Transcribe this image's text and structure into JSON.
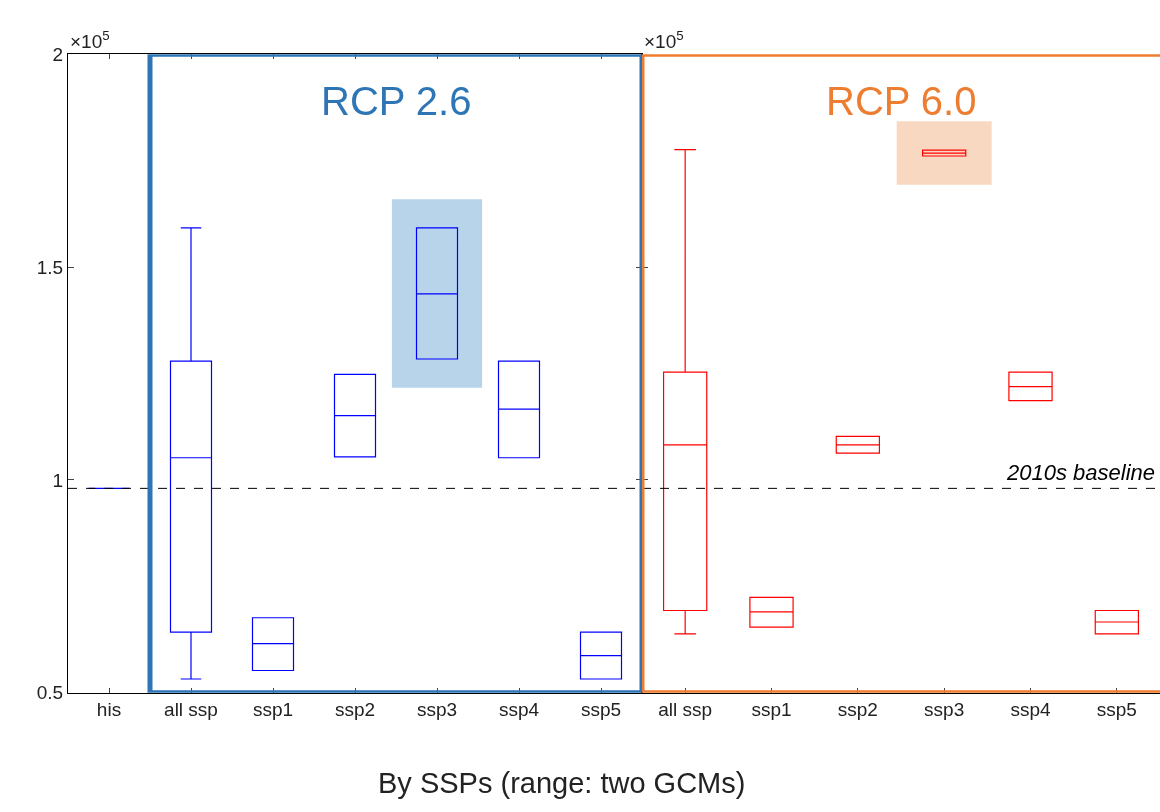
{
  "chart_data": [
    {
      "type": "box",
      "xlabel": "By SSPs (range: two GCMs)",
      "categories": [
        "his",
        "all ssp",
        "ssp1",
        "ssp2",
        "ssp3",
        "ssp4",
        "ssp5"
      ],
      "ylim": [
        0.5,
        2
      ],
      "yticks": [
        0.5,
        1,
        1.5,
        2
      ],
      "grid": false,
      "series": [
        {
          "color": "#0000ff",
          "boxes": [
            {
              "low": 0.98,
              "q1": 0.98,
              "median": 0.98,
              "q3": 0.98,
              "high": 0.98
            },
            {
              "low": 0.532,
              "q1": 0.642,
              "median": 1.052,
              "q3": 1.279,
              "high": 1.592
            },
            {
              "low": 0.552,
              "q1": 0.552,
              "median": 0.615,
              "q3": 0.676,
              "high": 0.676
            },
            {
              "low": 1.054,
              "q1": 1.054,
              "median": 1.151,
              "q3": 1.248,
              "high": 1.248
            },
            {
              "low": 1.284,
              "q1": 1.284,
              "median": 1.437,
              "q3": 1.592,
              "high": 1.592
            },
            {
              "low": 1.052,
              "q1": 1.052,
              "median": 1.166,
              "q3": 1.279,
              "high": 1.279
            },
            {
              "low": 0.532,
              "q1": 0.532,
              "median": 0.587,
              "q3": 0.642,
              "high": 0.642
            }
          ]
        }
      ],
      "ref_lines": [
        {
          "axis": "y",
          "value": 0.98,
          "color": "#000000",
          "line_style": "dashed"
        }
      ],
      "bands": [
        {
          "axis": "x",
          "from": "ssp3",
          "to": "ssp3",
          "color": "#b8d4ea"
        }
      ],
      "annotations": [
        "×10$^{5}$",
        "RCP 2.6"
      ]
    },
    {
      "type": "box",
      "categories": [
        "all ssp",
        "ssp1",
        "ssp2",
        "ssp3",
        "ssp4",
        "ssp5"
      ],
      "ylim": [
        0.5,
        2
      ],
      "yticks": [
        0.5,
        1,
        1.5,
        2
      ],
      "grid": false,
      "tick_labels": "x",
      "series": [
        {
          "color": "#ff0000",
          "boxes": [
            {
              "low": 0.638,
              "q1": 0.693,
              "median": 1.082,
              "q3": 1.253,
              "high": 1.776
            },
            {
              "low": 0.654,
              "q1": 0.654,
              "median": 0.69,
              "q3": 0.724,
              "high": 0.724
            },
            {
              "low": 1.063,
              "q1": 1.063,
              "median": 1.082,
              "q3": 1.102,
              "high": 1.102
            },
            {
              "low": 1.761,
              "q1": 1.761,
              "median": 1.768,
              "q3": 1.775,
              "high": 1.775
            },
            {
              "low": 1.186,
              "q1": 1.186,
              "median": 1.219,
              "q3": 1.253,
              "high": 1.253
            },
            {
              "low": 0.638,
              "q1": 0.638,
              "median": 0.666,
              "q3": 0.693,
              "high": 0.693
            }
          ]
        }
      ],
      "ref_lines": [
        {
          "axis": "y",
          "value": 0.98,
          "label": "2010s baseline",
          "color": "#000000",
          "line_style": "dashed"
        }
      ],
      "bands": [
        {
          "axis": "x",
          "from": "ssp3",
          "to": "ssp3",
          "color": "#f8d8c0"
        }
      ],
      "annotations": [
        "×10$^{5}$",
        "RCP 6.0"
      ]
    }
  ]
}
